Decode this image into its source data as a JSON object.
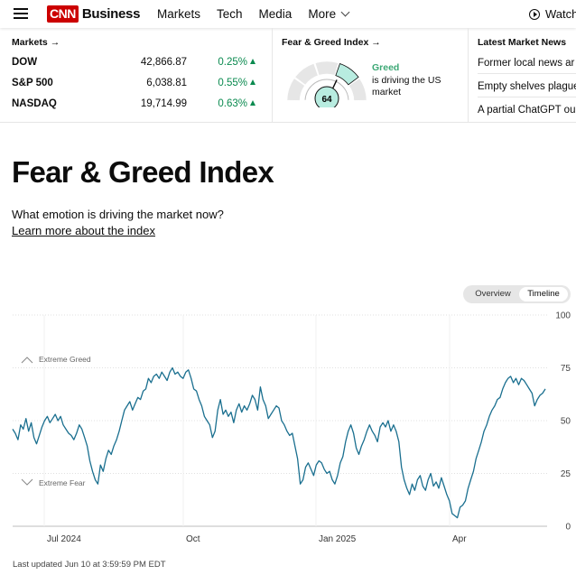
{
  "nav": {
    "brand": "CNN",
    "brand_section": "Business",
    "items": [
      "Markets",
      "Tech",
      "Media"
    ],
    "more_label": "More",
    "watch_label": "Watch"
  },
  "markets": {
    "title": "Markets",
    "rows": [
      {
        "name": "DOW",
        "value": "42,866.87",
        "change": "0.25%"
      },
      {
        "name": "S&P 500",
        "value": "6,038.81",
        "change": "0.55%"
      },
      {
        "name": "NASDAQ",
        "value": "19,714.99",
        "change": "0.63%"
      }
    ]
  },
  "fear_greed_widget": {
    "title": "Fear & Greed Index",
    "score": "64",
    "score_value": 64,
    "mood": "Greed",
    "mood_text": "is driving the US market"
  },
  "latest_news": {
    "title": "Latest Market News",
    "items": [
      "Former local news ar",
      "Empty shelves plague",
      "A partial ChatGPT ou"
    ]
  },
  "page": {
    "title": "Fear & Greed Index",
    "subtitle": "What emotion is driving the market now?",
    "learn_more": "Learn more about the index"
  },
  "toggle": {
    "options": [
      "Overview",
      "Timeline"
    ],
    "selected": "Timeline"
  },
  "colors": {
    "brand": "#cc0000",
    "positive": "#0a8a4f",
    "greed": "#3ca875",
    "line": "#1a6f8f",
    "gauge_active": "#b8ece0"
  },
  "chart_data": {
    "type": "line",
    "ylim": [
      0,
      100
    ],
    "yticks": [
      0,
      25,
      50,
      75,
      100
    ],
    "x_tick_labels": [
      "Jul 2024",
      "Oct",
      "Jan 2025",
      "Apr"
    ],
    "zone_labels": {
      "top": "Extreme Greed",
      "bottom": "Extreme Fear"
    },
    "grid": "horizontal dotted",
    "series": [
      {
        "values": [
          46,
          44,
          41,
          48,
          46,
          51,
          45,
          49,
          42,
          39,
          43,
          47,
          50,
          52,
          49,
          51,
          53,
          50,
          52,
          48,
          46,
          44,
          43,
          41,
          44,
          48,
          46,
          42,
          38,
          31,
          26,
          22,
          20,
          29,
          26,
          32,
          36,
          34,
          38,
          41,
          45,
          50,
          55,
          57,
          59,
          55,
          58,
          61,
          60,
          64,
          65,
          70,
          68,
          71,
          72,
          70,
          73,
          71,
          69,
          73,
          75,
          72,
          73,
          71,
          70,
          73,
          74,
          70,
          65,
          64,
          60,
          57,
          52,
          50,
          48,
          42,
          45,
          55,
          60,
          53,
          55,
          52,
          54,
          49,
          55,
          58,
          54,
          57,
          55,
          58,
          62,
          60,
          55,
          66,
          60,
          57,
          51,
          53,
          55,
          57,
          56,
          50,
          48,
          45,
          43,
          44,
          38,
          32,
          20,
          22,
          28,
          30,
          27,
          24,
          29,
          31,
          30,
          27,
          25,
          26,
          22,
          20,
          24,
          30,
          33,
          40,
          45,
          48,
          44,
          37,
          34,
          38,
          41,
          45,
          48,
          45,
          43,
          40,
          47,
          49,
          47,
          50,
          45,
          48,
          45,
          40,
          28,
          22,
          18,
          15,
          20,
          17,
          22,
          24,
          19,
          17,
          22,
          25,
          19,
          21,
          18,
          23,
          19,
          15,
          12,
          6,
          5,
          4,
          9,
          10,
          12,
          18,
          22,
          26,
          32,
          36,
          40,
          45,
          48,
          52,
          55,
          57,
          60,
          61,
          65,
          68,
          70,
          71,
          68,
          70,
          67,
          70,
          69,
          67,
          65,
          63,
          57,
          60,
          62,
          63,
          65
        ]
      }
    ]
  },
  "updated_text": "Last updated Jun 10 at 3:59:59 PM EDT"
}
